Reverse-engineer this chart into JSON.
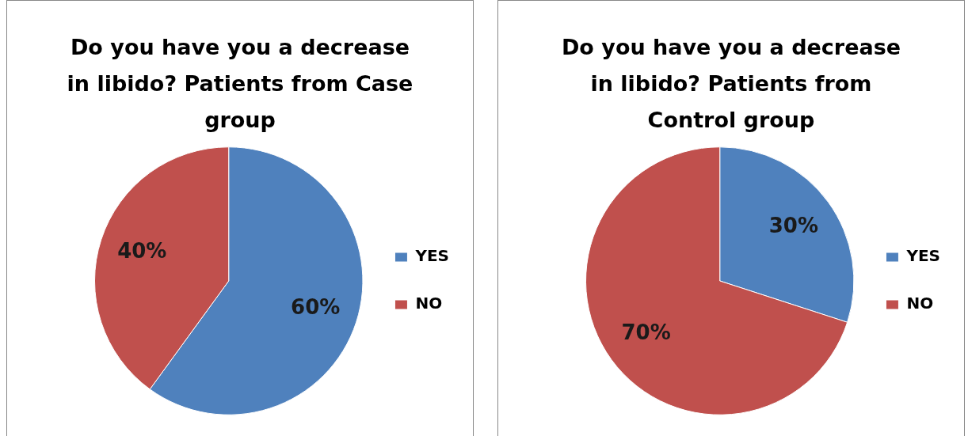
{
  "chart_data": [
    {
      "type": "pie",
      "title": "Do you have you a decrease in libido? Patients from Case group",
      "categories": [
        "YES",
        "NO"
      ],
      "values": [
        60,
        40
      ],
      "colors": [
        "#4f81bd",
        "#c0504d"
      ],
      "value_labels": [
        "60%",
        "40%"
      ],
      "legend": "right"
    },
    {
      "type": "pie",
      "title": "Do you have you a decrease in libido? Patients from Control group",
      "categories": [
        "YES",
        "NO"
      ],
      "values": [
        30,
        70
      ],
      "colors": [
        "#4f81bd",
        "#c0504d"
      ],
      "value_labels": [
        "30%",
        "70%"
      ],
      "legend": "right"
    }
  ]
}
